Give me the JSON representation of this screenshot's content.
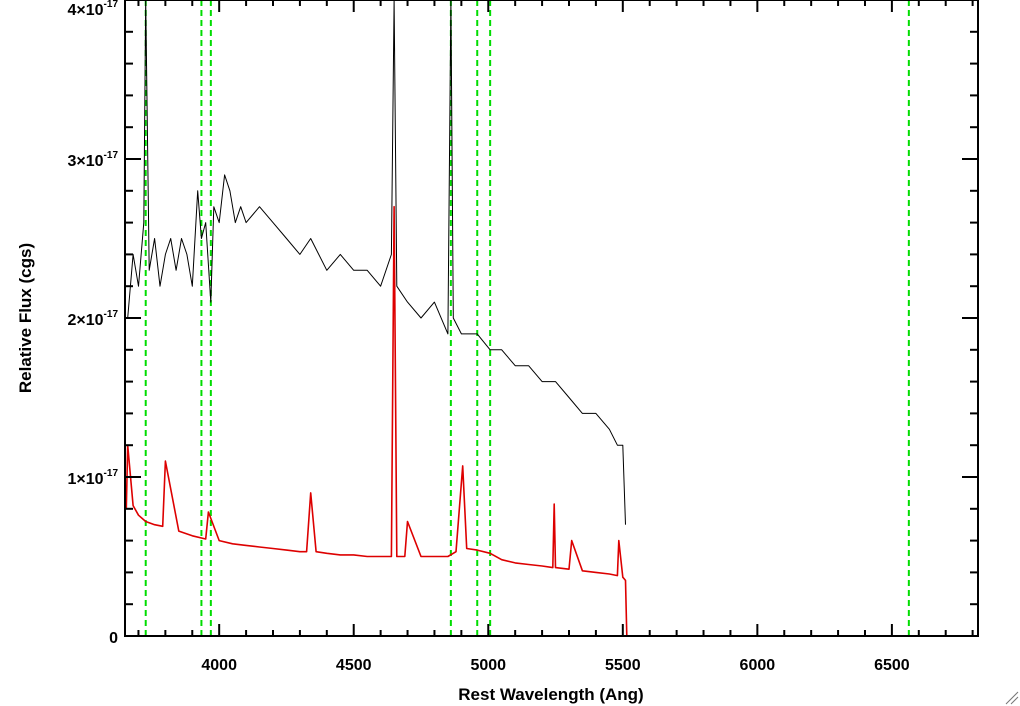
{
  "chart_data": {
    "type": "line",
    "xlabel": "Rest Wavelength (Ang)",
    "ylabel": "Relative Flux (cgs)",
    "xlim": [
      3650,
      6820
    ],
    "ylim": [
      0,
      4e-17
    ],
    "log_scale": false,
    "grid": false,
    "x_ticks": [
      4000,
      4500,
      5000,
      5500,
      6000,
      6500
    ],
    "x_tick_labels": [
      "4000",
      "4500",
      "5000",
      "5500",
      "6000",
      "6500"
    ],
    "y_ticks": [
      0,
      1e-17,
      2e-17,
      3e-17,
      4e-17
    ],
    "y_tick_labels": [
      {
        "mantissa": "0",
        "exponent": ""
      },
      {
        "mantissa": "1×10",
        "exponent": "-17"
      },
      {
        "mantissa": "2×10",
        "exponent": "-17"
      },
      {
        "mantissa": "3×10",
        "exponent": "-17"
      },
      {
        "mantissa": "4×10",
        "exponent": "-17"
      }
    ],
    "series": [
      {
        "color": "#000000",
        "x": [
          3660,
          3680,
          3700,
          3720,
          3727,
          3740,
          3760,
          3780,
          3800,
          3820,
          3840,
          3860,
          3880,
          3900,
          3920,
          3934,
          3950,
          3969,
          3980,
          4000,
          4020,
          4040,
          4060,
          4080,
          4100,
          4150,
          4200,
          4250,
          4300,
          4340,
          4400,
          4450,
          4500,
          4550,
          4600,
          4640,
          4650,
          4660,
          4700,
          4750,
          4800,
          4850,
          4861,
          4870,
          4900,
          4959,
          5007,
          5050,
          5100,
          5150,
          5200,
          5250,
          5300,
          5350,
          5400,
          5450,
          5480,
          5500,
          5510
        ],
        "y": [
          2e-17,
          2.4e-17,
          2.2e-17,
          2.6e-17,
          4e-17,
          2.3e-17,
          2.5e-17,
          2.2e-17,
          2.4e-17,
          2.5e-17,
          2.3e-17,
          2.5e-17,
          2.4e-17,
          2.2e-17,
          2.8e-17,
          2.5e-17,
          2.6e-17,
          2.1e-17,
          2.7e-17,
          2.6e-17,
          2.9e-17,
          2.8e-17,
          2.6e-17,
          2.7e-17,
          2.6e-17,
          2.7e-17,
          2.6e-17,
          2.5e-17,
          2.4e-17,
          2.5e-17,
          2.3e-17,
          2.4e-17,
          2.3e-17,
          2.3e-17,
          2.2e-17,
          2.4e-17,
          4e-17,
          2.2e-17,
          2.1e-17,
          2e-17,
          2.1e-17,
          1.9e-17,
          4e-17,
          2e-17,
          1.9e-17,
          1.9e-17,
          1.8e-17,
          1.8e-17,
          1.7e-17,
          1.7e-17,
          1.6e-17,
          1.6e-17,
          1.5e-17,
          1.4e-17,
          1.4e-17,
          1.3e-17,
          1.2e-17,
          1.2e-17,
          7e-18
        ]
      },
      {
        "color": "#dd0000",
        "x": [
          3655,
          3660,
          3680,
          3700,
          3727,
          3760,
          3790,
          3800,
          3850,
          3900,
          3950,
          3960,
          4000,
          4050,
          4100,
          4150,
          4200,
          4250,
          4300,
          4325,
          4340,
          4360,
          4400,
          4450,
          4500,
          4550,
          4600,
          4640,
          4650,
          4660,
          4690,
          4700,
          4750,
          4800,
          4850,
          4880,
          4905,
          4920,
          4959,
          5007,
          5050,
          5100,
          5150,
          5200,
          5240,
          5245,
          5250,
          5300,
          5310,
          5350,
          5400,
          5450,
          5480,
          5485,
          5500,
          5510,
          5515,
          5520,
          6000,
          6500,
          6820
        ],
        "y": [
          8e-18,
          1.2e-17,
          8.2e-18,
          7.6e-18,
          7.2e-18,
          7e-18,
          6.9e-18,
          1.1e-17,
          6.6e-18,
          6.3e-18,
          6.1e-18,
          7.8e-18,
          6e-18,
          5.8e-18,
          5.7e-18,
          5.6e-18,
          5.5e-18,
          5.4e-18,
          5.3e-18,
          5.3e-18,
          9e-18,
          5.3e-18,
          5.2e-18,
          5.1e-18,
          5.1e-18,
          5e-18,
          5e-18,
          5e-18,
          2.7e-17,
          5e-18,
          5e-18,
          7.2e-18,
          5e-18,
          5e-18,
          5e-18,
          5.3e-18,
          1.07e-17,
          5.5e-18,
          5.4e-18,
          5.2e-18,
          4.8e-18,
          4.6e-18,
          4.5e-18,
          4.4e-18,
          4.3e-18,
          8.3e-18,
          4.3e-18,
          4.2e-18,
          6e-18,
          4.1e-18,
          4e-18,
          3.9e-18,
          3.8e-18,
          6e-18,
          3.7e-18,
          3.5e-18,
          0,
          0,
          0,
          0,
          0
        ]
      }
    ],
    "reference_lines": [
      {
        "x": 3727,
        "color": "#00dd00",
        "style": "dashed"
      },
      {
        "x": 3934,
        "color": "#00dd00",
        "style": "dashed"
      },
      {
        "x": 3969,
        "color": "#00dd00",
        "style": "dashed"
      },
      {
        "x": 4861,
        "color": "#00dd00",
        "style": "dashed"
      },
      {
        "x": 4959,
        "color": "#00dd00",
        "style": "dashed"
      },
      {
        "x": 5007,
        "color": "#00dd00",
        "style": "dashed"
      },
      {
        "x": 6563,
        "color": "#00dd00",
        "style": "dashed"
      }
    ]
  }
}
